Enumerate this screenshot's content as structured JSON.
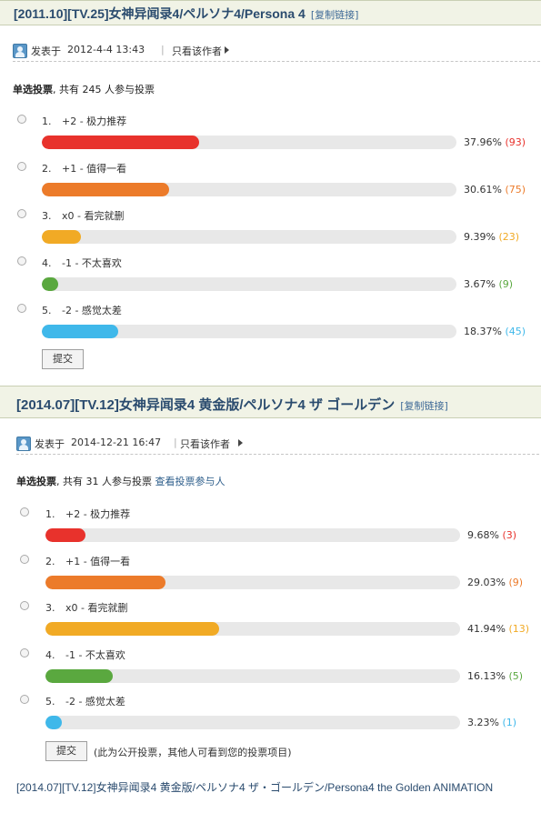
{
  "thread1": {
    "title": "[2011.10][TV.25]女神异闻录4/ペルソナ4/Persona 4",
    "copy_link": "[复制链接]",
    "posted_label": "发表于",
    "posted_time": "2012-4-4 13:43",
    "sep": "|",
    "author_only": "只看该作者",
    "poll": {
      "type_label": "单选投票",
      "participants_text": ", 共有 245 人参与投票",
      "options": [
        {
          "num": "1.",
          "label": "+2 - 极力推荐",
          "pct_text": "37.96%",
          "count_text": "(93)",
          "fraction": 0.3796,
          "color": "#e8322c"
        },
        {
          "num": "2.",
          "label": "+1 - 值得一看",
          "pct_text": "30.61%",
          "count_text": "(75)",
          "fraction": 0.3061,
          "color": "#ec7b2a"
        },
        {
          "num": "3.",
          "label": "x0 - 看完就删",
          "pct_text": "9.39%",
          "count_text": "(23)",
          "fraction": 0.0939,
          "color": "#f1aa25"
        },
        {
          "num": "4.",
          "label": "-1 - 不太喜欢",
          "pct_text": "3.67%",
          "count_text": "(9)",
          "fraction": 0.0367,
          "color": "#5aa83f"
        },
        {
          "num": "5.",
          "label": "-2 - 感觉太差",
          "pct_text": "18.37%",
          "count_text": "(45)",
          "fraction": 0.1837,
          "color": "#3fb8ea"
        }
      ],
      "submit_label": "提交"
    }
  },
  "thread2": {
    "title": "[2014.07][TV.12]女神异闻录4 黄金版/ペルソナ4 ザ ゴールデン",
    "copy_link": "[复制链接]",
    "posted_label": "发表于",
    "posted_time": "2014-12-21 16:47",
    "sep": "|",
    "author_only": "只看该作者",
    "poll": {
      "type_label": "单选投票",
      "participants_text": ", 共有 31 人参与投票",
      "view_voters": "查看投票参与人",
      "options": [
        {
          "num": "1.",
          "label": "+2 - 极力推荐",
          "pct_text": "9.68%",
          "count_text": "(3)",
          "fraction": 0.0968,
          "color": "#e8322c"
        },
        {
          "num": "2.",
          "label": "+1 - 值得一看",
          "pct_text": "29.03%",
          "count_text": "(9)",
          "fraction": 0.2903,
          "color": "#ec7b2a"
        },
        {
          "num": "3.",
          "label": "x0 - 看完就删",
          "pct_text": "41.94%",
          "count_text": "(13)",
          "fraction": 0.4194,
          "color": "#f1aa25"
        },
        {
          "num": "4.",
          "label": "-1 - 不太喜欢",
          "pct_text": "16.13%",
          "count_text": "(5)",
          "fraction": 0.1613,
          "color": "#5aa83f"
        },
        {
          "num": "5.",
          "label": "-2 - 感觉太差",
          "pct_text": "3.23%",
          "count_text": "(1)",
          "fraction": 0.0323,
          "color": "#3fb8ea"
        }
      ],
      "submit_label": "提交",
      "public_note": "(此为公开投票，其他人可看到您的投票项目)"
    }
  },
  "footer": {
    "title": "[2014.07][TV.12]女神异闻录4 黄金版/ペルソナ4 ザ・ゴールデン/Persona4 the Golden ANIMATION"
  }
}
